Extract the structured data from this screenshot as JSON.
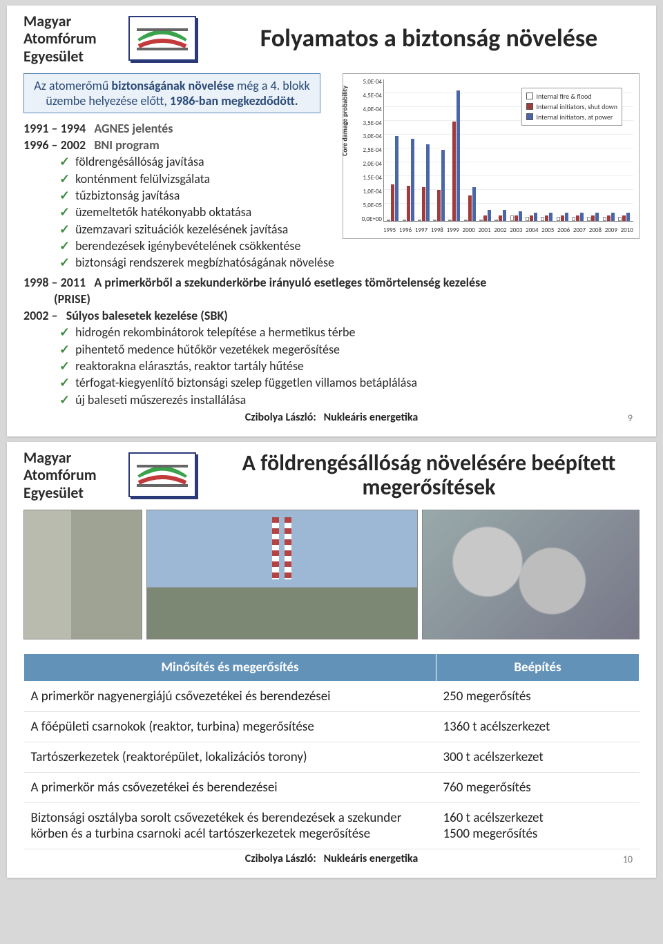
{
  "org": {
    "l1": "Magyar",
    "l2": "Atomfórum",
    "l3": "Egyesület"
  },
  "slide1": {
    "title": "Folyamatos a biztonság növelése",
    "intro_pre": "Az atomerőmű ",
    "intro_bold": "biztonságának növelése ",
    "intro_mid": "még a 4. blokk üzembe helyezése előtt, ",
    "intro_bold2": "1986-ban megkezdődött.",
    "t1_period": "1991 – 1994",
    "t1_prog": "AGNES jelentés",
    "t2_period": "1996 – 2002",
    "t2_prog": "BNI program",
    "bni_items": [
      "földrengésállóság javítása",
      "konténment felülvizsgálata",
      "tűzbiztonság javítása",
      "üzemeltetők hatékonyabb oktatása",
      "üzemzavari szituációk kezelésének javítása",
      "berendezések igénybevételének csökkentése",
      "biztonsági rendszerek megbízhatóságának növelése"
    ],
    "t3_period": "1998 – 2011",
    "t3_text": "A primerkörből a szekunderkörbe irányuló esetleges tömörtelenség kezelése",
    "t3_sub": "(PRISE)",
    "t4_period": "2002 –",
    "t4_text": "Súlyos balesetek kezelése (SBK)",
    "sbk_items": [
      "hidrogén rekombinátorok telepítése a hermetikus térbe",
      "pihentető medence hűtőkör vezetékek megerősítése",
      "reaktorakna elárasztás, reaktor tartály hűtése",
      "térfogat-kiegyenlítő biztonsági szelep független villamos betáplálása",
      "új baleseti műszerezés installálása"
    ],
    "footer_author": "Czibolya László:",
    "footer_title": "Nukleáris energetika",
    "page_num": "9"
  },
  "chart": {
    "ylabel": "Core damage probability",
    "yticks": [
      "5,0E-04",
      "4,5E-04",
      "4,0E-04",
      "3,5E-04",
      "3,0E-04",
      "2,5E-04",
      "2,0E-04",
      "1,5E-04",
      "1,0E-04",
      "5,0E-05",
      "0,0E+00"
    ],
    "years": [
      "1995",
      "1996",
      "1997",
      "1998",
      "1999",
      "2000",
      "2001",
      "2002",
      "2003",
      "2004",
      "2005",
      "2006",
      "2007",
      "2008",
      "2009",
      "2010"
    ],
    "legend": [
      {
        "label": "Internal fire & flood",
        "color": "#ffffff"
      },
      {
        "label": "Internal initiators, shut down",
        "color": "#a03c3c"
      },
      {
        "label": "Internal initiators, at power",
        "color": "#4a66a6"
      }
    ],
    "series": {
      "fire": [
        0,
        0,
        0,
        0,
        0,
        0,
        0,
        0,
        4,
        3,
        3,
        3,
        3,
        3,
        3,
        3
      ],
      "shut": [
        26,
        25,
        24,
        22,
        70,
        18,
        4,
        4,
        4,
        4,
        4,
        4,
        4,
        4,
        4,
        4
      ],
      "atpower": [
        60,
        58,
        54,
        50,
        92,
        24,
        8,
        8,
        7,
        6,
        6,
        6,
        6,
        6,
        6,
        6
      ]
    },
    "colors": {
      "fire": "#ffffff",
      "shut": "#a03c3c",
      "atpower": "#4a66a6"
    }
  },
  "slide2": {
    "title": "A földrengésállóság növelésére beépített megerősítések",
    "table": {
      "headers": [
        "Minősítés és megerősítés",
        "Beépítés"
      ],
      "rows": [
        [
          "A primerkör nagyenergiájú csővezetékei és berendezései",
          "250 megerősítés"
        ],
        [
          "A főépületi csarnokok (reaktor, turbina) megerősítése",
          "1360 t acélszerkezet"
        ],
        [
          "Tartószerkezetek (reaktorépület, lokalizációs torony)",
          "300 t acélszerkezet"
        ],
        [
          "A primerkör más csővezetékei és berendezései",
          "760 megerősítés"
        ],
        [
          "Biztonsági osztályba sorolt csővezetékek és berendezések a szekunder körben és a turbina csarnoki acél tartószerkezetek megerősítése",
          "160 t acélszerkezet\n1500 megerősítés"
        ]
      ]
    },
    "footer_author": "Czibolya László:",
    "footer_title": "Nukleáris energetika",
    "page_num": "10"
  }
}
